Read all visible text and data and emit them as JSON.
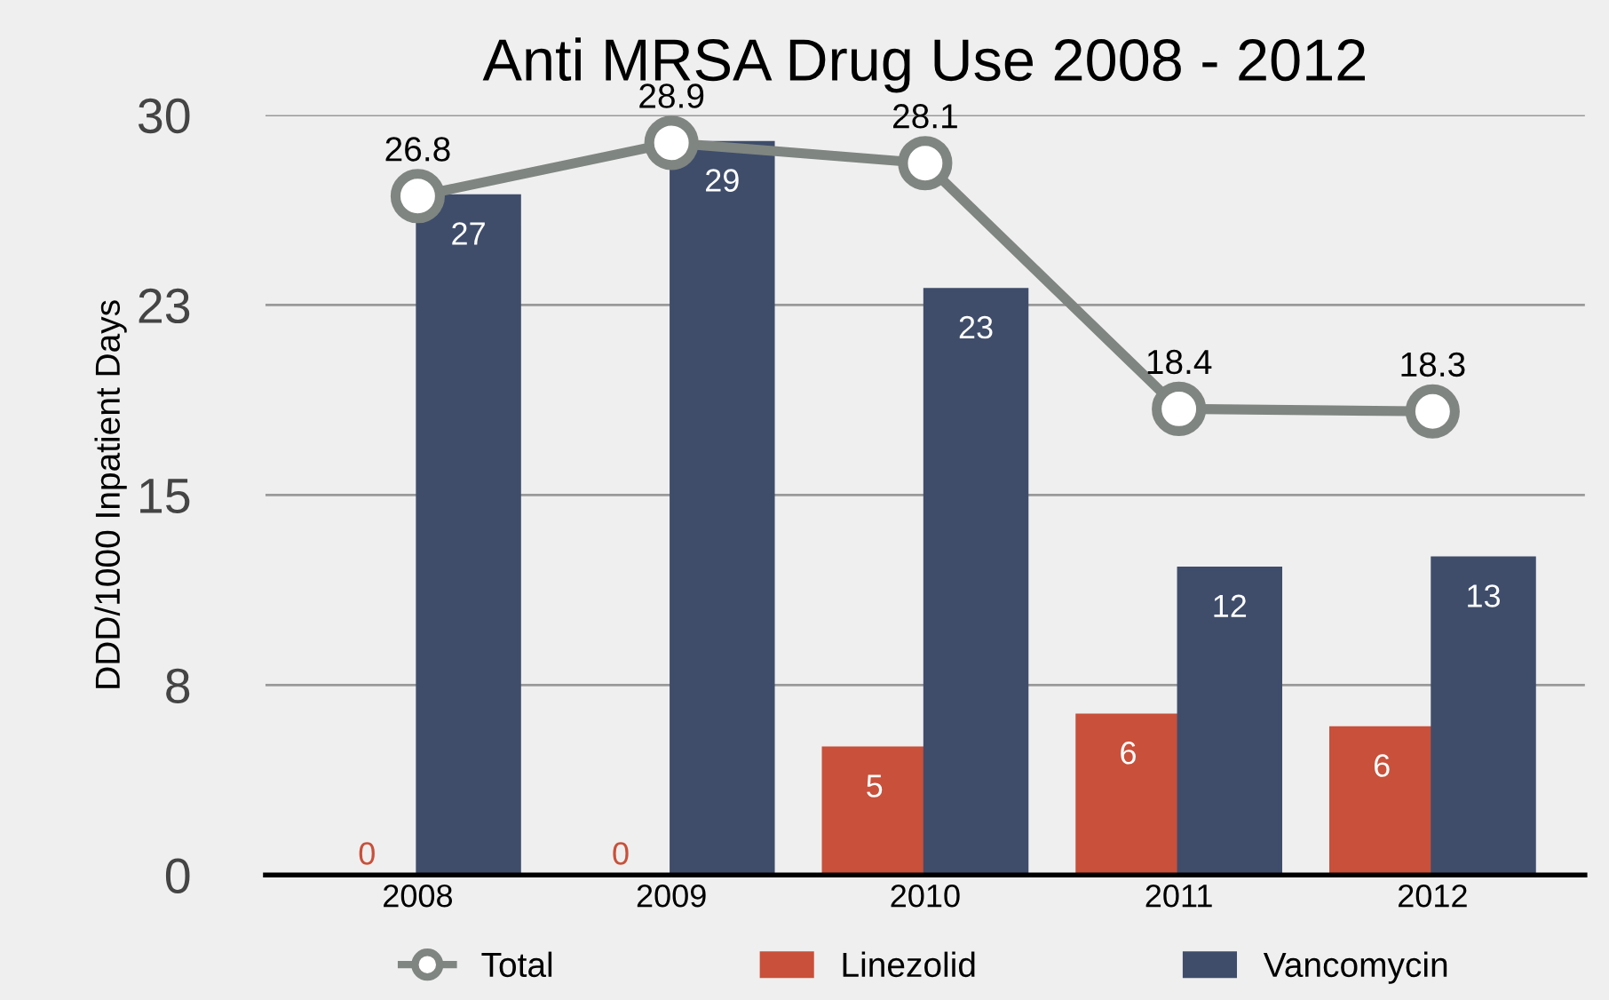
{
  "chart_data": {
    "type": "bar",
    "title": "Anti MRSA Drug Use 2008 - 2012",
    "ylabel": "DDD/1000 Inpatient Days",
    "categories": [
      "2008",
      "2009",
      "2010",
      "2011",
      "2012"
    ],
    "series": [
      {
        "name": "Total",
        "type": "line",
        "color": "#7f8580",
        "values": [
          26.8,
          28.9,
          28.1,
          18.4,
          18.3
        ],
        "marker": "circle",
        "data_labels": true
      },
      {
        "name": "Linezolid",
        "color": "#c9503a",
        "values": [
          0,
          0,
          5.0,
          6.3,
          5.8
        ],
        "value_labels": [
          "0",
          "0",
          "5",
          "6",
          "6"
        ]
      },
      {
        "name": "Vancomycin",
        "color": "#3f4d6b",
        "values": [
          26.8,
          28.9,
          23.1,
          12.1,
          12.5
        ],
        "value_labels": [
          "27",
          "29",
          "23",
          "12",
          "13"
        ]
      }
    ],
    "ylim": [
      0,
      30
    ],
    "yticks": [
      0,
      {
        "value": 7.5,
        "label": "8"
      },
      15,
      {
        "value": 22.5,
        "label": "23"
      },
      30
    ],
    "grid": "y",
    "legend": "bottom"
  }
}
